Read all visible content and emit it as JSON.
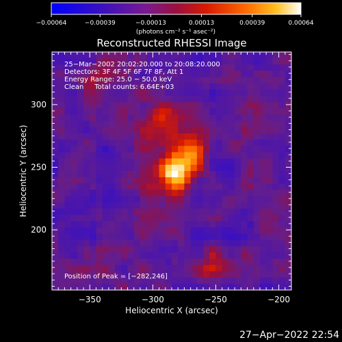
{
  "chart_data": {
    "type": "heatmap",
    "title": "Reconstructed RHESSI Image",
    "xlabel": "Heliocentric X (arcsec)",
    "ylabel": "Heliocentric Y (arcsec)",
    "xlim": [
      -380,
      -190
    ],
    "ylim": [
      152,
      342
    ],
    "x_ticks": [
      -350,
      -300,
      -250,
      -200
    ],
    "y_ticks": [
      200,
      250,
      300
    ],
    "x_tick_labels": [
      "−350",
      "−300",
      "−250",
      "−200"
    ],
    "y_tick_labels": [
      "200",
      "250",
      "300"
    ],
    "colorbar": {
      "range": [
        -0.00064,
        0.00064
      ],
      "tick_values": [
        -0.00064,
        -0.00039,
        -0.00013,
        0.00013,
        0.00039,
        0.00064
      ],
      "tick_labels": [
        "−0.00064",
        "−0.00039",
        "−0.00013",
        "0.00013",
        "0.00039",
        "0.00064"
      ],
      "unit_label": "(photons cm⁻² s⁻¹ asec⁻²)"
    },
    "annotations": [
      "25−Mar−2002 20:02:20.000 to 20:08:20.000",
      "Detectors: 3F 4F 5F 6F 7F 8F, Att 1",
      "Energy Range: 25.0 − 50.0 keV",
      "Clean     Total counts: 6.64E+03"
    ],
    "peak_label": "Position of Peak = [−282,246]",
    "peak": [
      -282,
      246
    ],
    "peak_value": 0.00064,
    "colors": {
      "background": "#000000",
      "axes": "#ffffff",
      "cmap": [
        "#0000ff",
        "#3a2aa0",
        "#5a2a90",
        "#8a1a50",
        "#c81e0a",
        "#ff4a00",
        "#ffa000",
        "#ffffff"
      ]
    }
  },
  "footer": {
    "timestamp": "27−Apr−2022 22:54"
  }
}
